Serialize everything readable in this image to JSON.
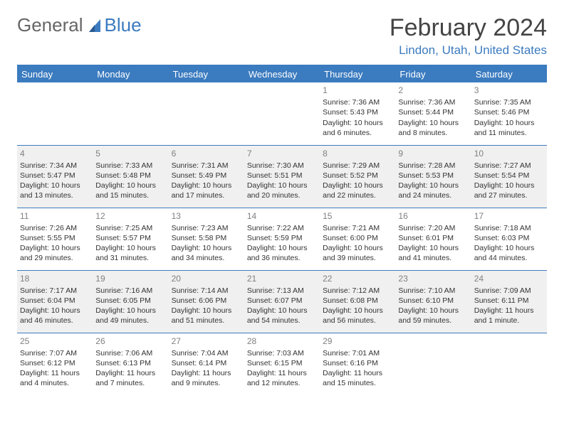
{
  "logo": {
    "general": "General",
    "blue": "Blue"
  },
  "title": "February 2024",
  "location": "Lindon, Utah, United States",
  "weekdays": [
    "Sunday",
    "Monday",
    "Tuesday",
    "Wednesday",
    "Thursday",
    "Friday",
    "Saturday"
  ],
  "colors": {
    "accent": "#3b7bbf",
    "row_alt": "#f0f0f0",
    "text": "#333333"
  },
  "weeks": [
    [
      null,
      null,
      null,
      null,
      {
        "day": "1",
        "sunrise": "Sunrise: 7:36 AM",
        "sunset": "Sunset: 5:43 PM",
        "daylight": "Daylight: 10 hours and 6 minutes."
      },
      {
        "day": "2",
        "sunrise": "Sunrise: 7:36 AM",
        "sunset": "Sunset: 5:44 PM",
        "daylight": "Daylight: 10 hours and 8 minutes."
      },
      {
        "day": "3",
        "sunrise": "Sunrise: 7:35 AM",
        "sunset": "Sunset: 5:46 PM",
        "daylight": "Daylight: 10 hours and 11 minutes."
      }
    ],
    [
      {
        "day": "4",
        "sunrise": "Sunrise: 7:34 AM",
        "sunset": "Sunset: 5:47 PM",
        "daylight": "Daylight: 10 hours and 13 minutes."
      },
      {
        "day": "5",
        "sunrise": "Sunrise: 7:33 AM",
        "sunset": "Sunset: 5:48 PM",
        "daylight": "Daylight: 10 hours and 15 minutes."
      },
      {
        "day": "6",
        "sunrise": "Sunrise: 7:31 AM",
        "sunset": "Sunset: 5:49 PM",
        "daylight": "Daylight: 10 hours and 17 minutes."
      },
      {
        "day": "7",
        "sunrise": "Sunrise: 7:30 AM",
        "sunset": "Sunset: 5:51 PM",
        "daylight": "Daylight: 10 hours and 20 minutes."
      },
      {
        "day": "8",
        "sunrise": "Sunrise: 7:29 AM",
        "sunset": "Sunset: 5:52 PM",
        "daylight": "Daylight: 10 hours and 22 minutes."
      },
      {
        "day": "9",
        "sunrise": "Sunrise: 7:28 AM",
        "sunset": "Sunset: 5:53 PM",
        "daylight": "Daylight: 10 hours and 24 minutes."
      },
      {
        "day": "10",
        "sunrise": "Sunrise: 7:27 AM",
        "sunset": "Sunset: 5:54 PM",
        "daylight": "Daylight: 10 hours and 27 minutes."
      }
    ],
    [
      {
        "day": "11",
        "sunrise": "Sunrise: 7:26 AM",
        "sunset": "Sunset: 5:55 PM",
        "daylight": "Daylight: 10 hours and 29 minutes."
      },
      {
        "day": "12",
        "sunrise": "Sunrise: 7:25 AM",
        "sunset": "Sunset: 5:57 PM",
        "daylight": "Daylight: 10 hours and 31 minutes."
      },
      {
        "day": "13",
        "sunrise": "Sunrise: 7:23 AM",
        "sunset": "Sunset: 5:58 PM",
        "daylight": "Daylight: 10 hours and 34 minutes."
      },
      {
        "day": "14",
        "sunrise": "Sunrise: 7:22 AM",
        "sunset": "Sunset: 5:59 PM",
        "daylight": "Daylight: 10 hours and 36 minutes."
      },
      {
        "day": "15",
        "sunrise": "Sunrise: 7:21 AM",
        "sunset": "Sunset: 6:00 PM",
        "daylight": "Daylight: 10 hours and 39 minutes."
      },
      {
        "day": "16",
        "sunrise": "Sunrise: 7:20 AM",
        "sunset": "Sunset: 6:01 PM",
        "daylight": "Daylight: 10 hours and 41 minutes."
      },
      {
        "day": "17",
        "sunrise": "Sunrise: 7:18 AM",
        "sunset": "Sunset: 6:03 PM",
        "daylight": "Daylight: 10 hours and 44 minutes."
      }
    ],
    [
      {
        "day": "18",
        "sunrise": "Sunrise: 7:17 AM",
        "sunset": "Sunset: 6:04 PM",
        "daylight": "Daylight: 10 hours and 46 minutes."
      },
      {
        "day": "19",
        "sunrise": "Sunrise: 7:16 AM",
        "sunset": "Sunset: 6:05 PM",
        "daylight": "Daylight: 10 hours and 49 minutes."
      },
      {
        "day": "20",
        "sunrise": "Sunrise: 7:14 AM",
        "sunset": "Sunset: 6:06 PM",
        "daylight": "Daylight: 10 hours and 51 minutes."
      },
      {
        "day": "21",
        "sunrise": "Sunrise: 7:13 AM",
        "sunset": "Sunset: 6:07 PM",
        "daylight": "Daylight: 10 hours and 54 minutes."
      },
      {
        "day": "22",
        "sunrise": "Sunrise: 7:12 AM",
        "sunset": "Sunset: 6:08 PM",
        "daylight": "Daylight: 10 hours and 56 minutes."
      },
      {
        "day": "23",
        "sunrise": "Sunrise: 7:10 AM",
        "sunset": "Sunset: 6:10 PM",
        "daylight": "Daylight: 10 hours and 59 minutes."
      },
      {
        "day": "24",
        "sunrise": "Sunrise: 7:09 AM",
        "sunset": "Sunset: 6:11 PM",
        "daylight": "Daylight: 11 hours and 1 minute."
      }
    ],
    [
      {
        "day": "25",
        "sunrise": "Sunrise: 7:07 AM",
        "sunset": "Sunset: 6:12 PM",
        "daylight": "Daylight: 11 hours and 4 minutes."
      },
      {
        "day": "26",
        "sunrise": "Sunrise: 7:06 AM",
        "sunset": "Sunset: 6:13 PM",
        "daylight": "Daylight: 11 hours and 7 minutes."
      },
      {
        "day": "27",
        "sunrise": "Sunrise: 7:04 AM",
        "sunset": "Sunset: 6:14 PM",
        "daylight": "Daylight: 11 hours and 9 minutes."
      },
      {
        "day": "28",
        "sunrise": "Sunrise: 7:03 AM",
        "sunset": "Sunset: 6:15 PM",
        "daylight": "Daylight: 11 hours and 12 minutes."
      },
      {
        "day": "29",
        "sunrise": "Sunrise: 7:01 AM",
        "sunset": "Sunset: 6:16 PM",
        "daylight": "Daylight: 11 hours and 15 minutes."
      },
      null,
      null
    ]
  ]
}
